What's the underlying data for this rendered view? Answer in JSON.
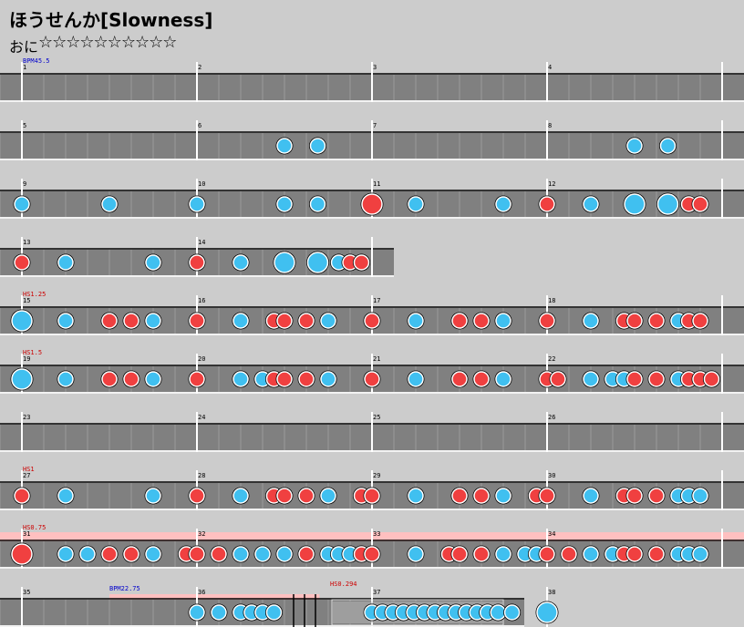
{
  "song": {
    "title": "ほうせんか[Slowness]",
    "course": "おに",
    "stars": "☆☆☆☆☆☆☆☆☆☆"
  },
  "colors": {
    "background": "#cccccc",
    "lane": "#808080",
    "lane_grid": "#9a9a9a",
    "don": "#f04040",
    "ka": "#40c0f0",
    "bpm_text": "#0000cc",
    "hs_text": "#cc0000",
    "hs_band": "#ffc0c0"
  },
  "chart_data": {
    "type": "taiko-score",
    "measures_per_row": 4,
    "rows": [
      {
        "measures": [
          1,
          2,
          3,
          4
        ],
        "label": "BPM45.5",
        "label_type": "bpm",
        "notes": []
      },
      {
        "measures": [
          5,
          6,
          7,
          8
        ],
        "notes": [
          {
            "m": 6,
            "pos": 0.5,
            "type": "ka"
          },
          {
            "m": 6,
            "pos": 0.69,
            "type": "ka"
          },
          {
            "m": 8,
            "pos": 0.5,
            "type": "ka"
          },
          {
            "m": 8,
            "pos": 0.69,
            "type": "ka"
          }
        ]
      },
      {
        "measures": [
          9,
          10,
          11,
          12
        ],
        "notes": [
          {
            "m": 9,
            "pos": 0.0,
            "type": "ka"
          },
          {
            "m": 9,
            "pos": 0.5,
            "type": "ka"
          },
          {
            "m": 10,
            "pos": 0.0,
            "type": "ka"
          },
          {
            "m": 10,
            "pos": 0.5,
            "type": "ka"
          },
          {
            "m": 10,
            "pos": 0.69,
            "type": "ka"
          },
          {
            "m": 11,
            "pos": 0.0,
            "type": "don-big"
          },
          {
            "m": 11,
            "pos": 0.25,
            "type": "ka"
          },
          {
            "m": 11,
            "pos": 0.75,
            "type": "ka"
          },
          {
            "m": 12,
            "pos": 0.0,
            "type": "don"
          },
          {
            "m": 12,
            "pos": 0.25,
            "type": "ka"
          },
          {
            "m": 12,
            "pos": 0.5,
            "type": "ka-big"
          },
          {
            "m": 12,
            "pos": 0.69,
            "type": "ka-big"
          },
          {
            "m": 12,
            "pos": 0.81,
            "type": "don"
          },
          {
            "m": 12,
            "pos": 0.875,
            "type": "don"
          }
        ]
      },
      {
        "measures": [
          13,
          14
        ],
        "notes": [
          {
            "m": 13,
            "pos": 0.0,
            "type": "don"
          },
          {
            "m": 13,
            "pos": 0.25,
            "type": "ka"
          },
          {
            "m": 13,
            "pos": 0.75,
            "type": "ka"
          },
          {
            "m": 14,
            "pos": 0.0,
            "type": "don"
          },
          {
            "m": 14,
            "pos": 0.25,
            "type": "ka"
          },
          {
            "m": 14,
            "pos": 0.5,
            "type": "ka-big"
          },
          {
            "m": 14,
            "pos": 0.69,
            "type": "ka-big"
          },
          {
            "m": 14,
            "pos": 0.81,
            "type": "ka"
          },
          {
            "m": 14,
            "pos": 0.875,
            "type": "don"
          },
          {
            "m": 14,
            "pos": 0.94,
            "type": "don"
          }
        ]
      },
      {
        "measures": [
          15,
          16,
          17,
          18
        ],
        "label": "HS1.25",
        "label_type": "hs",
        "notes": [
          {
            "m": 15,
            "pos": 0.0,
            "type": "ka-big"
          },
          {
            "m": 15,
            "pos": 0.25,
            "type": "ka"
          },
          {
            "m": 15,
            "pos": 0.5,
            "type": "don"
          },
          {
            "m": 15,
            "pos": 0.625,
            "type": "don"
          },
          {
            "m": 15,
            "pos": 0.75,
            "type": "ka"
          },
          {
            "m": 16,
            "pos": 0.0,
            "type": "don"
          },
          {
            "m": 16,
            "pos": 0.25,
            "type": "ka"
          },
          {
            "m": 16,
            "pos": 0.44,
            "type": "don"
          },
          {
            "m": 16,
            "pos": 0.5,
            "type": "don"
          },
          {
            "m": 16,
            "pos": 0.625,
            "type": "don"
          },
          {
            "m": 16,
            "pos": 0.75,
            "type": "ka"
          },
          {
            "m": 17,
            "pos": 0.0,
            "type": "don"
          },
          {
            "m": 17,
            "pos": 0.25,
            "type": "ka"
          },
          {
            "m": 17,
            "pos": 0.5,
            "type": "don"
          },
          {
            "m": 17,
            "pos": 0.625,
            "type": "don"
          },
          {
            "m": 17,
            "pos": 0.75,
            "type": "ka"
          },
          {
            "m": 18,
            "pos": 0.0,
            "type": "don"
          },
          {
            "m": 18,
            "pos": 0.25,
            "type": "ka"
          },
          {
            "m": 18,
            "pos": 0.44,
            "type": "don"
          },
          {
            "m": 18,
            "pos": 0.5,
            "type": "don"
          },
          {
            "m": 18,
            "pos": 0.625,
            "type": "don"
          },
          {
            "m": 18,
            "pos": 0.75,
            "type": "ka"
          },
          {
            "m": 18,
            "pos": 0.81,
            "type": "don"
          },
          {
            "m": 18,
            "pos": 0.875,
            "type": "don"
          }
        ]
      },
      {
        "measures": [
          19,
          20,
          21,
          22
        ],
        "label": "HS1.5",
        "label_type": "hs",
        "notes": [
          {
            "m": 19,
            "pos": 0.0,
            "type": "ka-big"
          },
          {
            "m": 19,
            "pos": 0.25,
            "type": "ka"
          },
          {
            "m": 19,
            "pos": 0.5,
            "type": "don"
          },
          {
            "m": 19,
            "pos": 0.625,
            "type": "don"
          },
          {
            "m": 19,
            "pos": 0.75,
            "type": "ka"
          },
          {
            "m": 20,
            "pos": 0.0,
            "type": "don"
          },
          {
            "m": 20,
            "pos": 0.25,
            "type": "ka"
          },
          {
            "m": 20,
            "pos": 0.375,
            "type": "ka"
          },
          {
            "m": 20,
            "pos": 0.44,
            "type": "don"
          },
          {
            "m": 20,
            "pos": 0.5,
            "type": "don"
          },
          {
            "m": 20,
            "pos": 0.625,
            "type": "don"
          },
          {
            "m": 20,
            "pos": 0.75,
            "type": "ka"
          },
          {
            "m": 21,
            "pos": 0.0,
            "type": "don"
          },
          {
            "m": 21,
            "pos": 0.25,
            "type": "ka"
          },
          {
            "m": 21,
            "pos": 0.5,
            "type": "don"
          },
          {
            "m": 21,
            "pos": 0.625,
            "type": "don"
          },
          {
            "m": 21,
            "pos": 0.75,
            "type": "ka"
          },
          {
            "m": 22,
            "pos": 0.0,
            "type": "don"
          },
          {
            "m": 22,
            "pos": 0.0625,
            "type": "don"
          },
          {
            "m": 22,
            "pos": 0.25,
            "type": "ka"
          },
          {
            "m": 22,
            "pos": 0.375,
            "type": "ka"
          },
          {
            "m": 22,
            "pos": 0.44,
            "type": "ka"
          },
          {
            "m": 22,
            "pos": 0.5,
            "type": "don"
          },
          {
            "m": 22,
            "pos": 0.625,
            "type": "don"
          },
          {
            "m": 22,
            "pos": 0.75,
            "type": "ka"
          },
          {
            "m": 22,
            "pos": 0.81,
            "type": "don"
          },
          {
            "m": 22,
            "pos": 0.875,
            "type": "don"
          },
          {
            "m": 22,
            "pos": 0.94,
            "type": "don"
          }
        ]
      },
      {
        "measures": [
          23,
          24,
          25,
          26
        ],
        "notes": []
      },
      {
        "measures": [
          27,
          28,
          29,
          30
        ],
        "label": "HS1",
        "label_type": "hs",
        "notes": [
          {
            "m": 27,
            "pos": 0.0,
            "type": "don"
          },
          {
            "m": 27,
            "pos": 0.25,
            "type": "ka"
          },
          {
            "m": 27,
            "pos": 0.75,
            "type": "ka"
          },
          {
            "m": 28,
            "pos": 0.0,
            "type": "don"
          },
          {
            "m": 28,
            "pos": 0.25,
            "type": "ka"
          },
          {
            "m": 28,
            "pos": 0.44,
            "type": "don"
          },
          {
            "m": 28,
            "pos": 0.5,
            "type": "don"
          },
          {
            "m": 28,
            "pos": 0.625,
            "type": "don"
          },
          {
            "m": 28,
            "pos": 0.75,
            "type": "ka"
          },
          {
            "m": 29,
            "pos": -0.06,
            "type": "don"
          },
          {
            "m": 29,
            "pos": 0.0,
            "type": "don"
          },
          {
            "m": 29,
            "pos": 0.25,
            "type": "ka"
          },
          {
            "m": 29,
            "pos": 0.5,
            "type": "don"
          },
          {
            "m": 29,
            "pos": 0.625,
            "type": "don"
          },
          {
            "m": 29,
            "pos": 0.75,
            "type": "ka"
          },
          {
            "m": 30,
            "pos": -0.06,
            "type": "don"
          },
          {
            "m": 30,
            "pos": 0.0,
            "type": "don"
          },
          {
            "m": 30,
            "pos": 0.25,
            "type": "ka"
          },
          {
            "m": 30,
            "pos": 0.44,
            "type": "don"
          },
          {
            "m": 30,
            "pos": 0.5,
            "type": "don"
          },
          {
            "m": 30,
            "pos": 0.625,
            "type": "don"
          },
          {
            "m": 30,
            "pos": 0.75,
            "type": "ka"
          },
          {
            "m": 30,
            "pos": 0.81,
            "type": "ka"
          },
          {
            "m": 30,
            "pos": 0.875,
            "type": "ka"
          }
        ]
      },
      {
        "measures": [
          31,
          32,
          33,
          34
        ],
        "label": "HS0.75",
        "label_type": "hs",
        "band": true,
        "notes": [
          {
            "m": 31,
            "pos": 0.0,
            "type": "don-big"
          },
          {
            "m": 31,
            "pos": 0.25,
            "type": "ka"
          },
          {
            "m": 31,
            "pos": 0.375,
            "type": "ka"
          },
          {
            "m": 31,
            "pos": 0.5,
            "type": "don"
          },
          {
            "m": 31,
            "pos": 0.625,
            "type": "don"
          },
          {
            "m": 31,
            "pos": 0.75,
            "type": "ka"
          },
          {
            "m": 31,
            "pos": 0.94,
            "type": "don"
          },
          {
            "m": 32,
            "pos": 0.0,
            "type": "don"
          },
          {
            "m": 32,
            "pos": 0.125,
            "type": "don"
          },
          {
            "m": 32,
            "pos": 0.25,
            "type": "ka"
          },
          {
            "m": 32,
            "pos": 0.375,
            "type": "ka"
          },
          {
            "m": 32,
            "pos": 0.5,
            "type": "ka"
          },
          {
            "m": 32,
            "pos": 0.625,
            "type": "don"
          },
          {
            "m": 32,
            "pos": 0.75,
            "type": "ka"
          },
          {
            "m": 32,
            "pos": 0.81,
            "type": "ka"
          },
          {
            "m": 32,
            "pos": 0.875,
            "type": "ka"
          },
          {
            "m": 32,
            "pos": 0.94,
            "type": "don"
          },
          {
            "m": 33,
            "pos": 0.0,
            "type": "don"
          },
          {
            "m": 33,
            "pos": 0.25,
            "type": "ka"
          },
          {
            "m": 33,
            "pos": 0.44,
            "type": "don"
          },
          {
            "m": 33,
            "pos": 0.5,
            "type": "don"
          },
          {
            "m": 33,
            "pos": 0.625,
            "type": "don"
          },
          {
            "m": 33,
            "pos": 0.75,
            "type": "ka"
          },
          {
            "m": 33,
            "pos": 0.875,
            "type": "ka"
          },
          {
            "m": 33,
            "pos": 0.94,
            "type": "ka"
          },
          {
            "m": 34,
            "pos": 0.0,
            "type": "don"
          },
          {
            "m": 34,
            "pos": 0.125,
            "type": "don"
          },
          {
            "m": 34,
            "pos": 0.25,
            "type": "ka"
          },
          {
            "m": 34,
            "pos": 0.375,
            "type": "ka"
          },
          {
            "m": 34,
            "pos": 0.44,
            "type": "don"
          },
          {
            "m": 34,
            "pos": 0.5,
            "type": "don"
          },
          {
            "m": 34,
            "pos": 0.625,
            "type": "don"
          },
          {
            "m": 34,
            "pos": 0.75,
            "type": "ka"
          },
          {
            "m": 34,
            "pos": 0.81,
            "type": "ka"
          },
          {
            "m": 34,
            "pos": 0.875,
            "type": "ka"
          }
        ]
      },
      {
        "measures": [
          35,
          36,
          37,
          38
        ],
        "final": true,
        "bpm_change": "BPM22.75",
        "end_label": "HS0.294",
        "notes": [
          {
            "m": 36,
            "pos": 0.0,
            "type": "ka"
          },
          {
            "m": 36,
            "pos": 0.125,
            "type": "ka"
          },
          {
            "m": 36,
            "pos": 0.25,
            "type": "ka"
          },
          {
            "m": 36,
            "pos": 0.3125,
            "type": "ka"
          },
          {
            "m": 36,
            "pos": 0.375,
            "type": "ka"
          },
          {
            "m": 36,
            "pos": 0.44,
            "type": "ka"
          },
          {
            "m": 37,
            "pos": 0.0,
            "type": "ka"
          },
          {
            "m": 37,
            "pos": 0.06,
            "type": "ka"
          },
          {
            "m": 37,
            "pos": 0.12,
            "type": "ka"
          },
          {
            "m": 37,
            "pos": 0.18,
            "type": "ka"
          },
          {
            "m": 37,
            "pos": 0.24,
            "type": "ka"
          },
          {
            "m": 37,
            "pos": 0.3,
            "type": "ka"
          },
          {
            "m": 37,
            "pos": 0.36,
            "type": "ka"
          },
          {
            "m": 37,
            "pos": 0.42,
            "type": "ka"
          },
          {
            "m": 37,
            "pos": 0.48,
            "type": "ka"
          },
          {
            "m": 37,
            "pos": 0.54,
            "type": "ka"
          },
          {
            "m": 37,
            "pos": 0.6,
            "type": "ka"
          },
          {
            "m": 37,
            "pos": 0.66,
            "type": "ka"
          },
          {
            "m": 37,
            "pos": 0.72,
            "type": "ka"
          },
          {
            "m": 37,
            "pos": 0.8,
            "type": "ka"
          },
          {
            "m": 38,
            "pos": 0.0,
            "type": "ka-big"
          }
        ]
      }
    ]
  }
}
